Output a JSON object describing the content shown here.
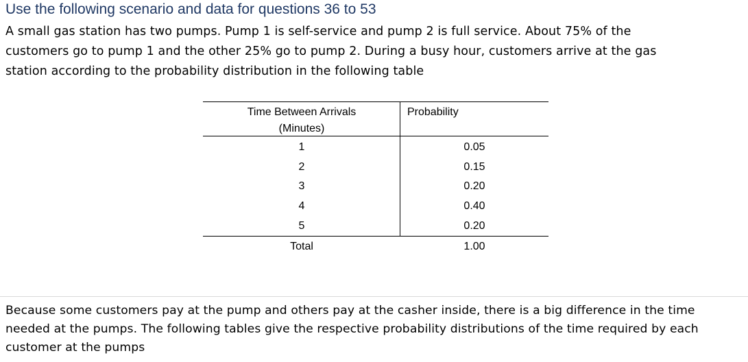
{
  "heading": "Use the following scenario and data for questions 36 to 53",
  "intro_lines": [
    "A small gas station has two pumps. Pump 1 is self-service and pump 2 is full service. About 75% of the",
    "customers go to pump 1 and the other 25% go to pump 2. During a busy hour, customers arrive at the gas",
    "station according to the probability distribution in the following table"
  ],
  "table": {
    "header_col1_line1": "Time Between Arrivals",
    "header_col1_line2": "(Minutes)",
    "header_col2": "Probability",
    "rows": [
      {
        "time": "1",
        "prob": "0.05"
      },
      {
        "time": "2",
        "prob": "0.15"
      },
      {
        "time": "3",
        "prob": "0.20"
      },
      {
        "time": "4",
        "prob": "0.40"
      },
      {
        "time": "5",
        "prob": "0.20"
      }
    ],
    "total_label": "Total",
    "total_value": "1.00"
  },
  "followup_lines": [
    "Because some customers pay at the pump and others pay at the casher inside, there is a big difference in the time",
    "needed at the pumps. The following tables give the respective probability distributions of the time required by each",
    "customer at the pumps"
  ]
}
